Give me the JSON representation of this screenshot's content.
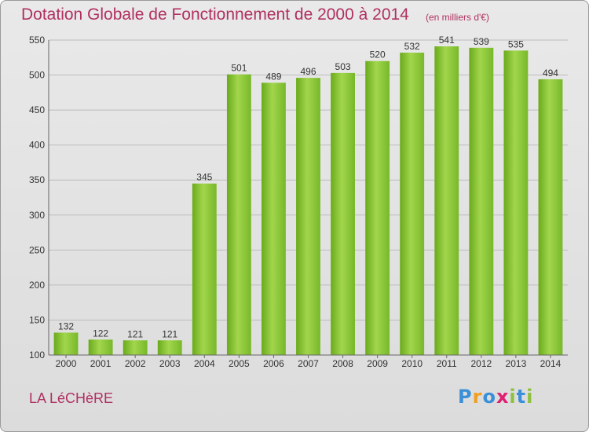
{
  "title": "Dotation Globale de Fonctionnement de 2000 à 2014",
  "subtitle": "(en milliers d'€)",
  "commune": "LA LéCHèRE",
  "logo": {
    "letters": [
      "P",
      "r",
      "o",
      "x",
      "i",
      "t",
      "i"
    ],
    "colors": [
      "#3a8fd8",
      "#f0a020",
      "#3a8fd8",
      "#e02070",
      "#90c040",
      "#3a8fd8",
      "#90c040"
    ]
  },
  "colors": {
    "bar": "#7cbc2a",
    "bar_light": "#a6da50",
    "bar_dark": "#5c9a14",
    "grid": "#bdbdbd",
    "title": "#b03060"
  },
  "chart_data": {
    "type": "bar",
    "title": "Dotation Globale de Fonctionnement de 2000 à 2014",
    "subtitle": "(en milliers d'€)",
    "xlabel": "",
    "ylabel": "",
    "ylim": [
      100,
      550
    ],
    "yticks": [
      100,
      150,
      200,
      250,
      300,
      350,
      400,
      450,
      500,
      550
    ],
    "grid": true,
    "categories": [
      "2000",
      "2001",
      "2002",
      "2003",
      "2004",
      "2005",
      "2006",
      "2007",
      "2008",
      "2009",
      "2010",
      "2011",
      "2012",
      "2013",
      "2014"
    ],
    "values": [
      132,
      122,
      121,
      121,
      345,
      501,
      489,
      496,
      503,
      520,
      532,
      541,
      539,
      535,
      494
    ]
  }
}
